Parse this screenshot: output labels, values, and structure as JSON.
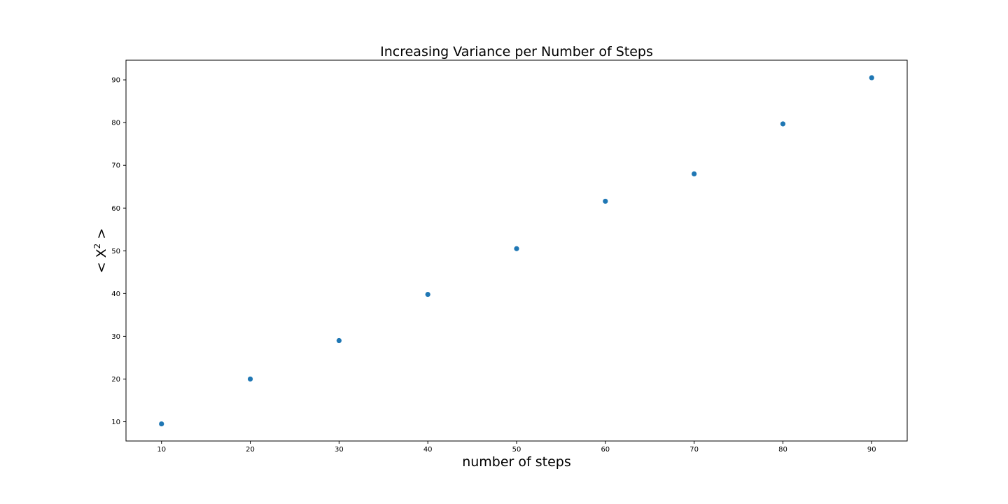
{
  "chart_data": {
    "type": "scatter",
    "title": "Increasing Variance per Number of Steps",
    "xlabel": "number of steps",
    "ylabel": "< X² >",
    "ylabel_parts": {
      "left": "< X",
      "sup": "2",
      "right": " >"
    },
    "xlim": [
      6,
      94
    ],
    "ylim": [
      5.5,
      94.6
    ],
    "x_ticks": [
      10,
      20,
      30,
      40,
      50,
      60,
      70,
      80,
      90
    ],
    "y_ticks": [
      10,
      20,
      30,
      40,
      50,
      60,
      70,
      80,
      90
    ],
    "grid": false,
    "legend": false,
    "marker_color": "#1f77b4",
    "series": [
      {
        "x": [
          10,
          20,
          30,
          40,
          50,
          60,
          70,
          80,
          90
        ],
        "y": [
          9.5,
          20.0,
          29.0,
          39.8,
          50.5,
          61.6,
          68.0,
          79.7,
          90.5
        ]
      }
    ]
  }
}
